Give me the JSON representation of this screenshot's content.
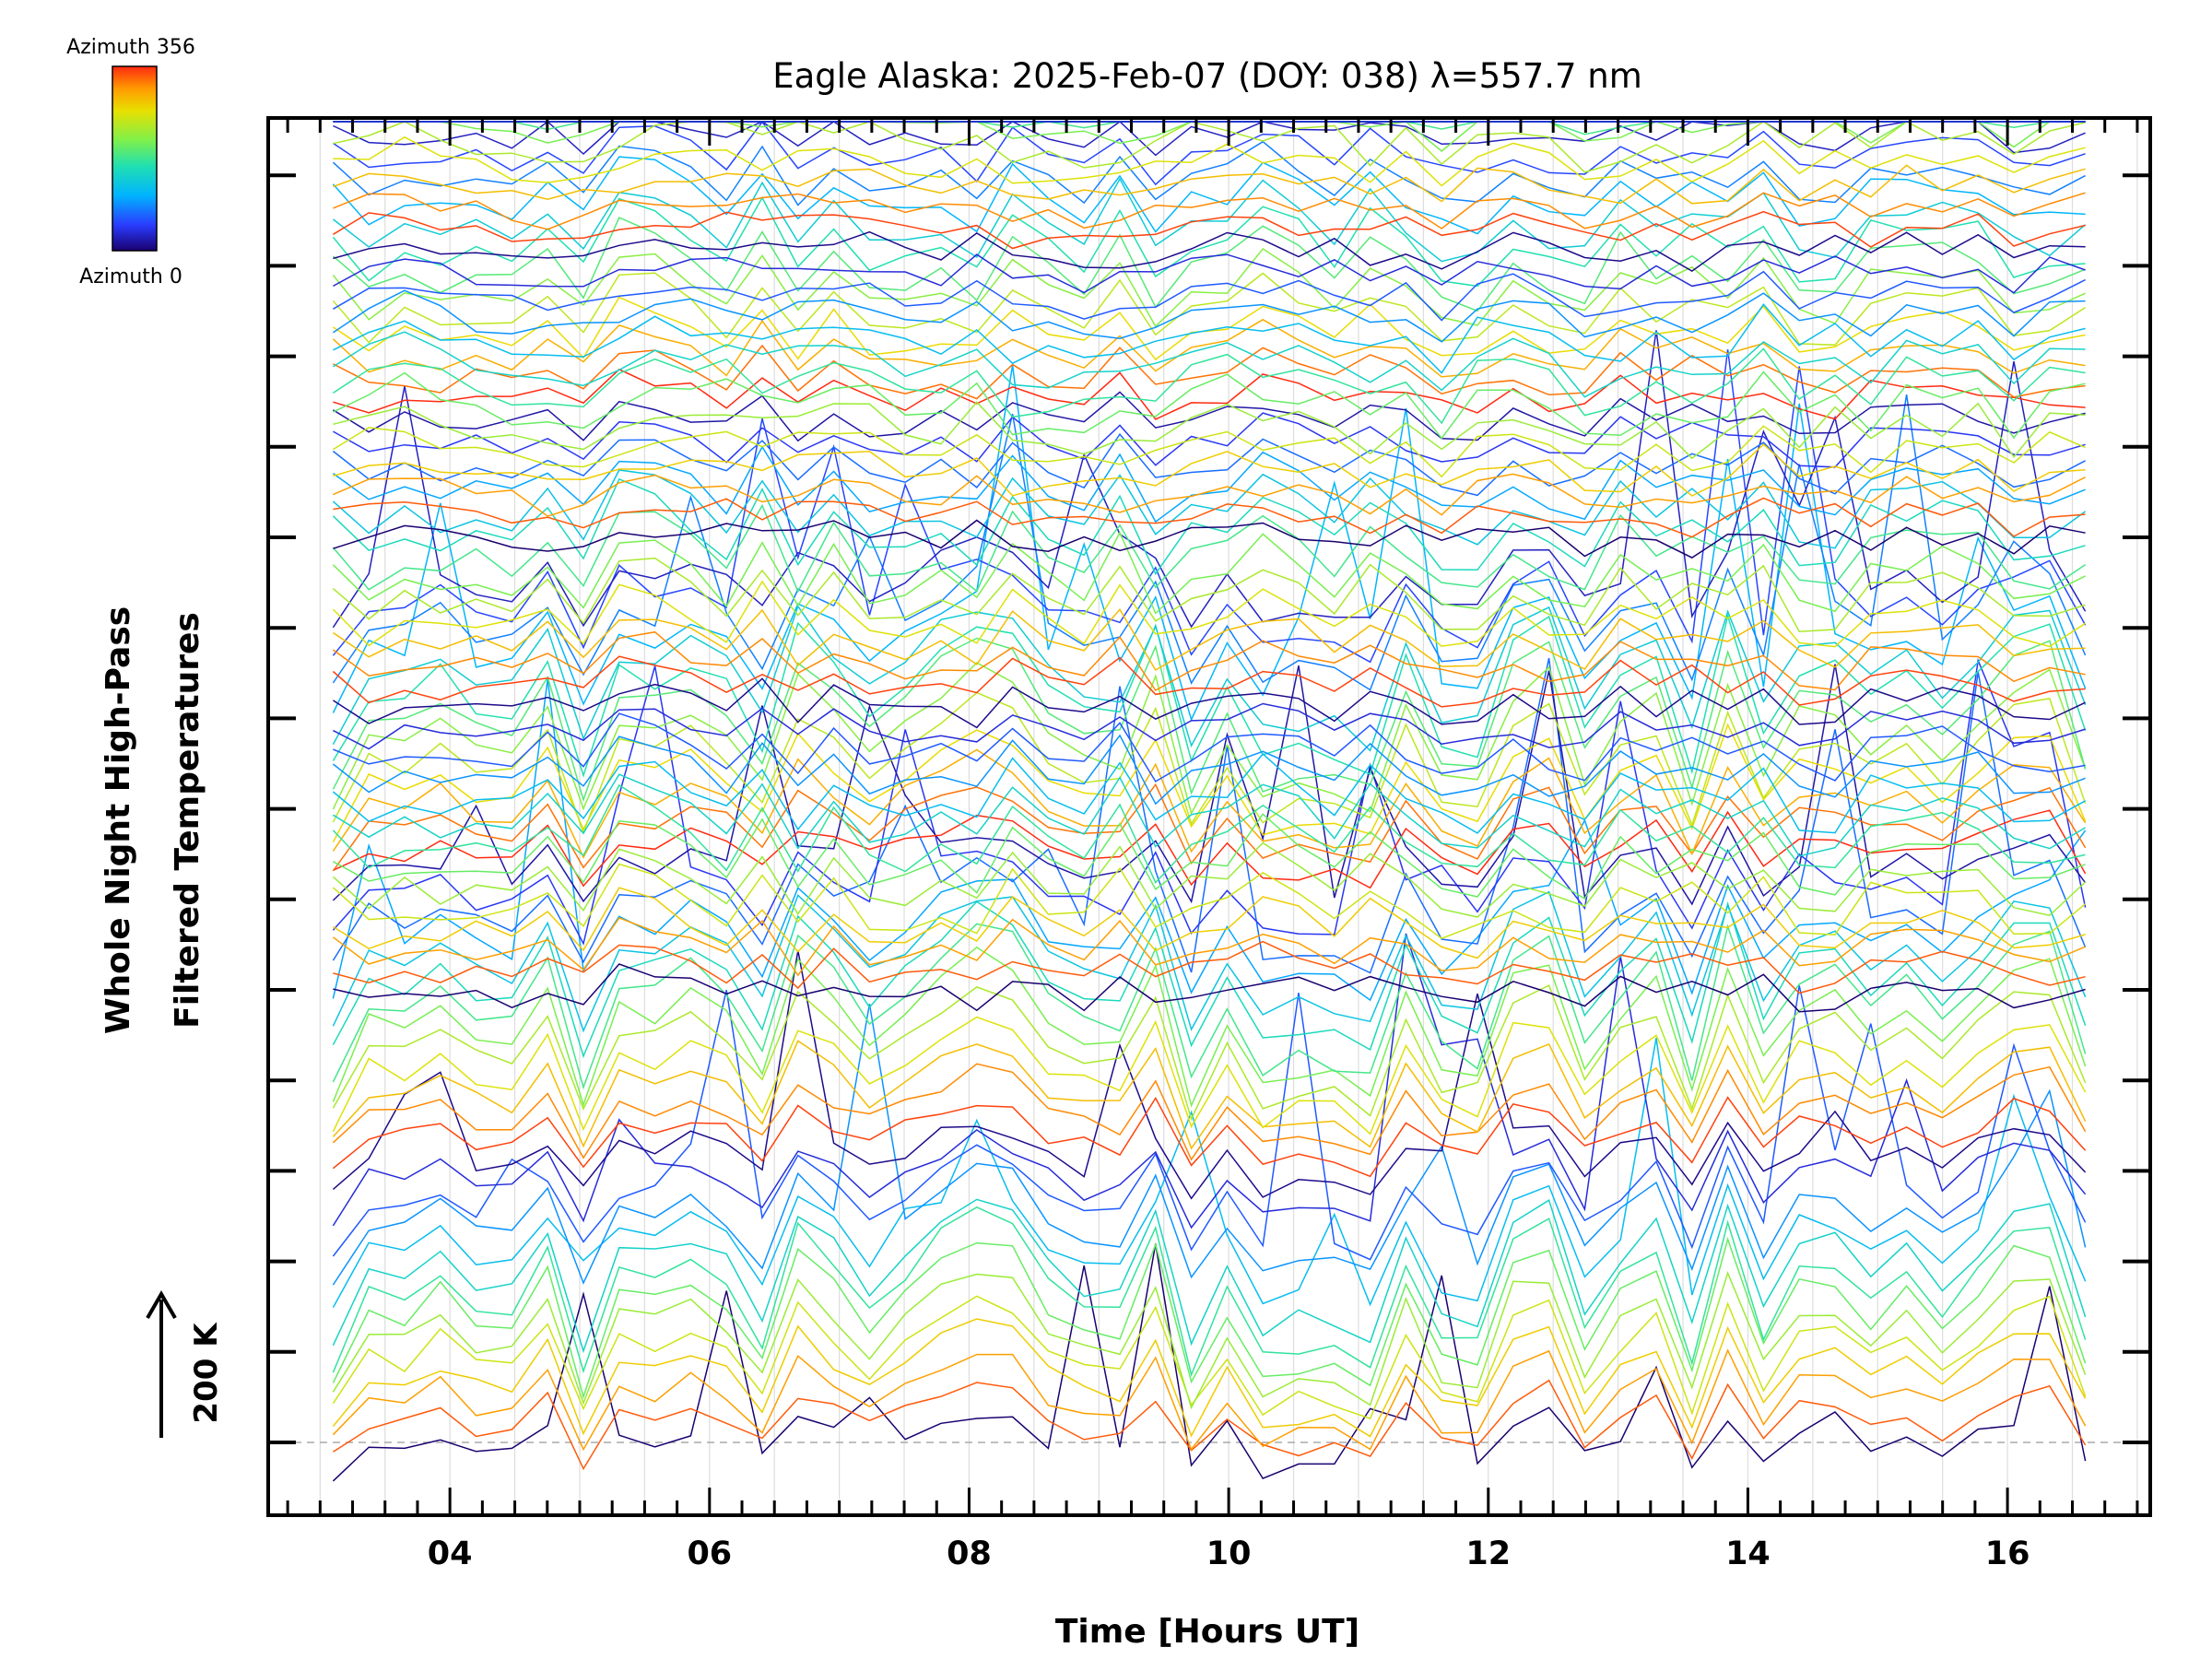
{
  "chart_data": {
    "type": "line",
    "title": "Eagle Alaska: 2025-Feb-07 (DOY: 038) λ=557.7 nm",
    "xlabel": "Time [Hours UT]",
    "ylabel_line1": "Whole Night High-Pass",
    "ylabel_line2": "Filtered Temperatures",
    "scale_bar_label": "200 K",
    "colorbar": {
      "top_label": "Azimuth 356",
      "bottom_label": "Azimuth 0",
      "colormap": "rainbow",
      "azimuth_range": [
        0,
        356
      ]
    },
    "xlim": [
      2.6,
      17.1
    ],
    "x_ticks": [
      4,
      6,
      8,
      10,
      12,
      14,
      16
    ],
    "x_tick_labels": [
      "04",
      "06",
      "08",
      "10",
      "12",
      "14",
      "16"
    ],
    "data_x_range": [
      3.1,
      16.6
    ],
    "sample_count": 50,
    "groups": 3,
    "series_per_group": 40,
    "group_baseline_gridline": [
      3,
      8,
      13
    ],
    "y_grid_count": 15,
    "grid": true,
    "colors": {
      "frame": "#000000",
      "grid": "#dddddd",
      "baseline_dash": "#aaaaaa"
    }
  }
}
